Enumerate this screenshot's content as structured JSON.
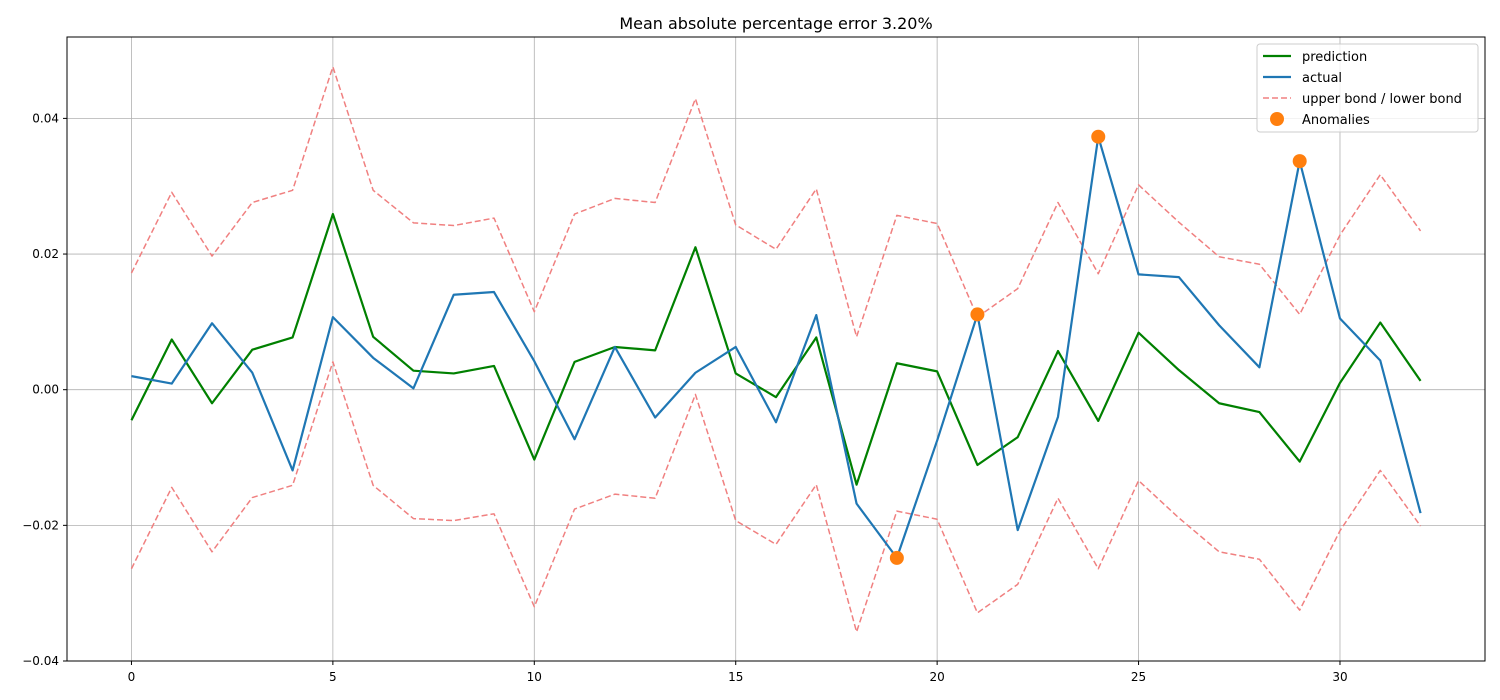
{
  "chart_data": {
    "type": "line",
    "title": "Mean absolute percentage error 3.20%",
    "xlabel": "",
    "ylabel": "",
    "xlim": [
      -1.6,
      33.6
    ],
    "ylim": [
      -0.04,
      0.052
    ],
    "grid": true,
    "legend_placement": "top-right",
    "x": [
      0,
      1,
      2,
      3,
      4,
      5,
      6,
      7,
      8,
      9,
      10,
      11,
      12,
      13,
      14,
      15,
      16,
      17,
      18,
      19,
      20,
      21,
      22,
      23,
      24,
      25,
      26,
      27,
      28,
      29,
      30,
      31,
      32
    ],
    "x_ticks": [
      0,
      5,
      10,
      15,
      20,
      25,
      30
    ],
    "x_tick_labels": [
      "0",
      "5",
      "10",
      "15",
      "20",
      "25",
      "30"
    ],
    "y_ticks": [
      -0.04,
      -0.02,
      0.0,
      0.02,
      0.04
    ],
    "y_tick_labels": [
      "−0.04",
      "−0.02",
      "0.00",
      "0.02",
      "0.04"
    ],
    "series": [
      {
        "key": "prediction",
        "name": "prediction",
        "color": "#008000",
        "style": "solid",
        "values": [
          -0.0045,
          0.0074,
          -0.002,
          0.0059,
          0.0077,
          0.0259,
          0.0078,
          0.0028,
          0.0024,
          0.0035,
          -0.0103,
          0.0041,
          0.0063,
          0.0058,
          0.021,
          0.0024,
          -0.0011,
          0.0077,
          -0.014,
          0.0039,
          0.0027,
          -0.0111,
          -0.007,
          0.0057,
          -0.0046,
          0.0084,
          0.0029,
          -0.002,
          -0.0033,
          -0.0106,
          0.001,
          0.0099,
          0.0013
        ]
      },
      {
        "key": "actual",
        "name": "actual",
        "color": "#1f77b4",
        "style": "solid",
        "values": [
          0.002,
          0.0009,
          0.0098,
          0.0025,
          -0.0119,
          0.0107,
          0.0047,
          0.0002,
          0.014,
          0.0144,
          0.0042,
          -0.0073,
          0.0063,
          -0.0041,
          0.0025,
          0.0063,
          -0.0048,
          0.011,
          -0.0168,
          -0.0248,
          -0.0075,
          0.0111,
          -0.0207,
          -0.004,
          0.0373,
          0.017,
          0.0166,
          0.0095,
          0.0033,
          0.0337,
          0.0105,
          0.0043,
          -0.0182
        ]
      },
      {
        "key": "upper",
        "name": "upper bond / lower bond",
        "color": "#f08080",
        "style": "dashed",
        "values": [
          0.0172,
          0.0291,
          0.0197,
          0.0276,
          0.0294,
          0.0476,
          0.0294,
          0.0246,
          0.0242,
          0.0253,
          0.0115,
          0.0259,
          0.0282,
          0.0276,
          0.0429,
          0.0243,
          0.0207,
          0.0296,
          0.0078,
          0.0257,
          0.0245,
          0.0107,
          0.0149,
          0.0276,
          0.0171,
          0.0302,
          0.0247,
          0.0196,
          0.0185,
          0.0111,
          0.0228,
          0.0317,
          0.0234
        ]
      },
      {
        "key": "lower",
        "name": "",
        "color": "#f08080",
        "style": "dashed",
        "values": [
          -0.0264,
          -0.0144,
          -0.0239,
          -0.0159,
          -0.0141,
          0.0041,
          -0.0141,
          -0.019,
          -0.0193,
          -0.0183,
          -0.032,
          -0.0176,
          -0.0154,
          -0.016,
          -0.0007,
          -0.0193,
          -0.0228,
          -0.014,
          -0.0357,
          -0.0179,
          -0.0191,
          -0.0329,
          -0.0287,
          -0.016,
          -0.0264,
          -0.0134,
          -0.0189,
          -0.0239,
          -0.025,
          -0.0325,
          -0.0208,
          -0.0119,
          -0.0201
        ]
      }
    ],
    "anomalies": {
      "name": "Anomalies",
      "color": "#ff7f0e",
      "points": [
        {
          "x": 19,
          "y": -0.0248
        },
        {
          "x": 21,
          "y": 0.0111
        },
        {
          "x": 24,
          "y": 0.0373
        },
        {
          "x": 29,
          "y": 0.0337
        }
      ]
    },
    "legend": [
      {
        "label": "prediction",
        "color": "#008000",
        "kind": "line"
      },
      {
        "label": "actual",
        "color": "#1f77b4",
        "kind": "line"
      },
      {
        "label": "upper bond / lower bond",
        "color": "#f08080",
        "kind": "dashed"
      },
      {
        "label": "Anomalies",
        "color": "#ff7f0e",
        "kind": "marker"
      }
    ]
  }
}
